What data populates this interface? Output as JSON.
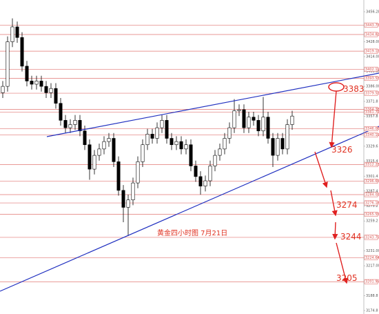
{
  "chart_data": {
    "type": "candlestick",
    "title": "黄金四小时图     7月21日",
    "ylim": [
      3174.8,
      3456.28
    ],
    "yticks": [
      3456.28,
      {
        "value": 3428,
        "label": "3428.00"
      },
      {
        "value": 3414,
        "label": "3414.00"
      },
      {
        "value": 3400,
        "label": "3400.00"
      },
      {
        "value": 3386,
        "label": "3386.00"
      },
      3371.8,
      3357.8,
      3329.6,
      3315.4,
      3301.4,
      3287.4,
      3273.2,
      3259.2,
      {
        "value": 3231,
        "label": "3231.00"
      },
      {
        "value": 3217,
        "label": "3217.00"
      },
      3188.8,
      3174.8
    ],
    "levels": [
      3443.73,
      3434.82,
      3419.13,
      3402.11,
      3393.53,
      3379.53,
      3364.38,
      3361.72,
      3346.06,
      3340.19,
      3312.23,
      3296.65,
      3284.03,
      3276.18,
      3265.55,
      3243.75,
      3224.64,
      3201.95
    ],
    "level_color": "#d9534f",
    "up_color": "#ffffff",
    "down_color": "#000000",
    "open": [
      3380,
      3386,
      3428,
      3442,
      3432,
      3405,
      3391,
      3388,
      3391,
      3386,
      3380,
      3384,
      3370,
      3354,
      3347,
      3350,
      3354,
      3344,
      3331,
      3308,
      3321,
      3327,
      3334,
      3337,
      3315,
      3288,
      3272,
      3279,
      3295,
      3315,
      3331,
      3341,
      3337,
      3347,
      3354,
      3337,
      3331,
      3334,
      3327,
      3331,
      3311,
      3301,
      3292,
      3297,
      3311,
      3321,
      3327,
      3337,
      3347,
      3363,
      3364,
      3347,
      3357,
      3354,
      3344,
      3357,
      3337,
      3321,
      3337,
      3327,
      3350
    ],
    "high": [
      3391,
      3433,
      3450,
      3447,
      3437,
      3410,
      3396,
      3396,
      3396,
      3391,
      3389,
      3389,
      3375,
      3359,
      3355,
      3359,
      3359,
      3349,
      3336,
      3326,
      3332,
      3339,
      3342,
      3342,
      3320,
      3293,
      3284,
      3300,
      3320,
      3336,
      3346,
      3346,
      3352,
      3359,
      3359,
      3342,
      3339,
      3339,
      3336,
      3336,
      3316,
      3306,
      3302,
      3316,
      3326,
      3332,
      3342,
      3352,
      3374,
      3369,
      3369,
      3362,
      3362,
      3359,
      3376,
      3362,
      3342,
      3342,
      3342,
      3355,
      3363
    ],
    "low": [
      3375,
      3381,
      3423,
      3427,
      3400,
      3386,
      3383,
      3383,
      3381,
      3375,
      3375,
      3365,
      3349,
      3342,
      3342,
      3345,
      3339,
      3326,
      3298,
      3303,
      3316,
      3322,
      3329,
      3310,
      3283,
      3258,
      3245,
      3274,
      3290,
      3310,
      3326,
      3332,
      3332,
      3342,
      3332,
      3326,
      3326,
      3322,
      3322,
      3306,
      3296,
      3284,
      3287,
      3292,
      3306,
      3316,
      3322,
      3332,
      3342,
      3358,
      3342,
      3342,
      3349,
      3339,
      3339,
      3332,
      3310,
      3316,
      3322,
      3322,
      3345
    ],
    "close": [
      3386,
      3428,
      3442,
      3432,
      3405,
      3391,
      3388,
      3391,
      3386,
      3380,
      3384,
      3370,
      3354,
      3347,
      3350,
      3354,
      3344,
      3331,
      3308,
      3321,
      3327,
      3334,
      3337,
      3315,
      3288,
      3272,
      3279,
      3295,
      3315,
      3331,
      3341,
      3337,
      3347,
      3354,
      3337,
      3331,
      3334,
      3327,
      3331,
      3311,
      3301,
      3292,
      3297,
      3311,
      3321,
      3327,
      3337,
      3347,
      3363,
      3364,
      3347,
      3357,
      3354,
      3344,
      3357,
      3337,
      3321,
      3337,
      3327,
      3350,
      3358
    ],
    "targets": [
      3383,
      3326,
      3274,
      3244,
      3205
    ]
  }
}
